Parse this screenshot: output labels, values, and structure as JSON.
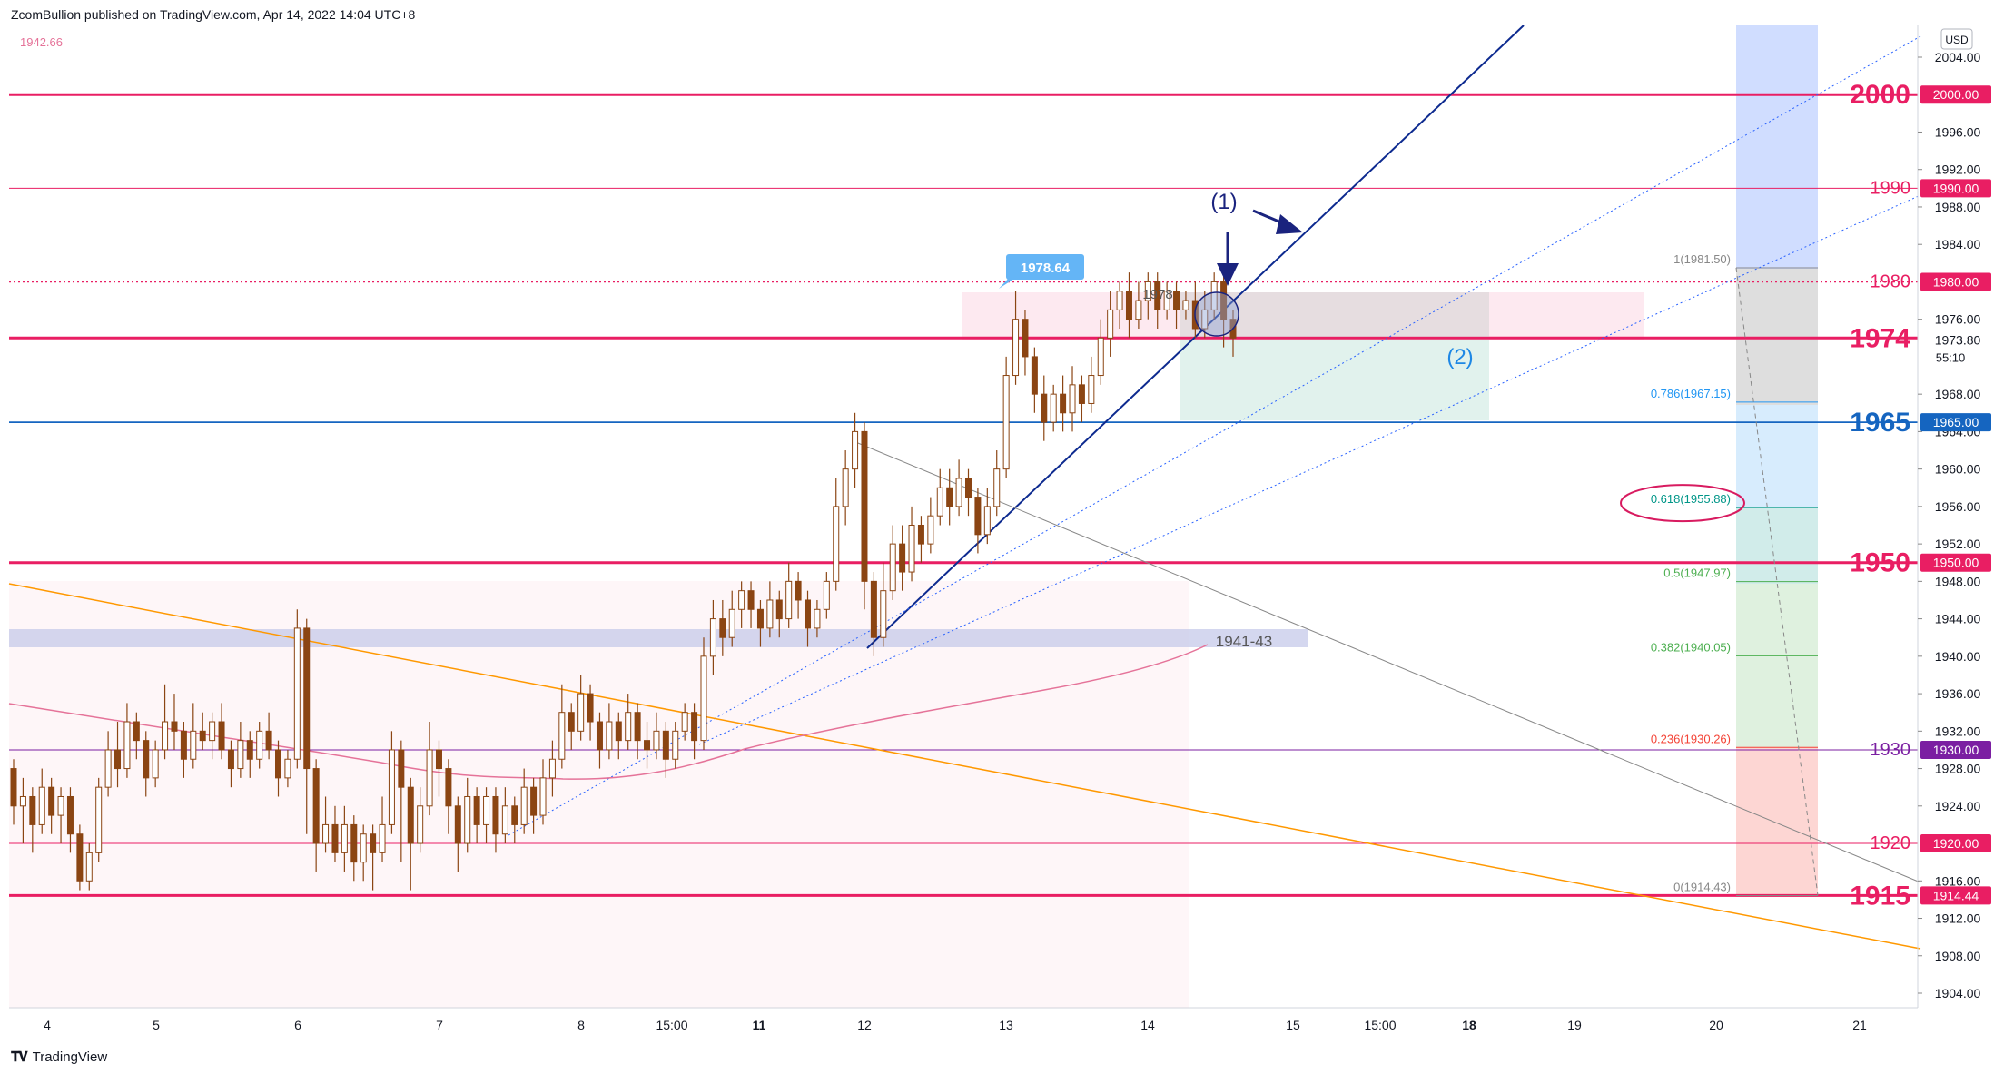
{
  "header": {
    "published": "ZcomBullion published on TradingView.com, Apr 14, 2022 14:04 UTC+8"
  },
  "footer": {
    "brand": "TradingView",
    "logo": "tradingview-logo-icon"
  },
  "colors": {
    "level_pink": "#e91e63",
    "level_blue": "#1565c0",
    "level_purple": "#7b1fa2",
    "trend_navy": "#0d2a8f",
    "candle": "#8b4513",
    "ma_line": "#e57399",
    "orange_line": "#ff9800",
    "blue_band": "#2962ff"
  },
  "chart_data": {
    "type": "candlestick",
    "currency": "USD",
    "top_left_value": "1942.66",
    "price_axis": {
      "min": 1902,
      "max": 2006,
      "ticks": [
        2004,
        1996,
        1992,
        1988,
        1984,
        1976,
        1968,
        1964,
        1960,
        1956,
        1952,
        1948,
        1944,
        1940,
        1936,
        1932,
        1928,
        1924,
        1916,
        1912,
        1908,
        1904
      ],
      "tick_labels": [
        "2004.00",
        "1996.00",
        "1992.00",
        "1988.00",
        "1984.00",
        "1976.00",
        "1968.00",
        "1964.00",
        "1960.00",
        "1956.00",
        "1952.00",
        "1948.00",
        "1944.00",
        "1940.00",
        "1936.00",
        "1932.00",
        "1928.00",
        "1924.00",
        "1916.00",
        "1912.00",
        "1908.00",
        "1904.00"
      ]
    },
    "time_axis": [
      "4",
      "5",
      "6",
      "7",
      "8",
      "15:00",
      "11",
      "12",
      "13",
      "14",
      "15",
      "15:00",
      "18",
      "19",
      "20",
      "21"
    ],
    "bold_time_labels": [
      "11",
      "18"
    ],
    "current_price": {
      "price": 1973.8,
      "label": "1973.80",
      "countdown": "55:10"
    },
    "horizontal_levels": [
      {
        "price": 2000,
        "label": "2000",
        "box": "2000.00",
        "color": "#e91e63",
        "weight": "bold"
      },
      {
        "price": 1990,
        "label": "1990",
        "box": "1990.00",
        "color": "#e91e63",
        "weight": "thin"
      },
      {
        "price": 1980,
        "label": "1980",
        "box": "1980.00",
        "color": "#e91e63",
        "weight": "dotted"
      },
      {
        "price": 1974,
        "label": "1974",
        "box": "",
        "color": "#e91e63",
        "weight": "bold"
      },
      {
        "price": 1965,
        "label": "1965",
        "box": "1965.00",
        "color": "#1565c0",
        "weight": "medium"
      },
      {
        "price": 1950,
        "label": "1950",
        "box": "1950.00",
        "color": "#e91e63",
        "weight": "bold"
      },
      {
        "price": 1930,
        "label": "1930",
        "box": "1930.00",
        "color": "#7b1fa2",
        "weight": "thin"
      },
      {
        "price": 1920,
        "label": "1920",
        "box": "1920.00",
        "color": "#e91e63",
        "weight": "thin"
      },
      {
        "price": 1914.44,
        "label": "1915",
        "box": "1914.44",
        "color": "#e91e63",
        "weight": "bold"
      }
    ],
    "fibonacci": [
      {
        "label": "1(1981.50)",
        "price": 1981.5,
        "color": "#888888"
      },
      {
        "label": "0.786(1967.15)",
        "price": 1967.15,
        "color": "#2196f3"
      },
      {
        "label": "0.618(1955.88)",
        "price": 1955.88,
        "color": "#009688"
      },
      {
        "label": "0.5(1947.97)",
        "price": 1947.97,
        "color": "#4caf50"
      },
      {
        "label": "0.382(1940.05)",
        "price": 1940.05,
        "color": "#4caf50"
      },
      {
        "label": "0.236(1930.26)",
        "price": 1930.26,
        "color": "#f44336"
      },
      {
        "label": "0(1914.43)",
        "price": 1914.43,
        "color": "#888888"
      }
    ],
    "annotations": {
      "high_label": "1978.64",
      "zone_label": "1941-43",
      "mid_label": "1978",
      "marker_1": "(1)",
      "marker_2": "(2)"
    },
    "candles": [
      [
        1928,
        1924,
        1929,
        1922
      ],
      [
        1924,
        1925,
        1927,
        1920
      ],
      [
        1925,
        1922,
        1926,
        1919
      ],
      [
        1922,
        1926,
        1928,
        1921
      ],
      [
        1926,
        1923,
        1927,
        1921
      ],
      [
        1923,
        1925,
        1926,
        1920
      ],
      [
        1925,
        1921,
        1926,
        1919
      ],
      [
        1921,
        1916,
        1922,
        1915
      ],
      [
        1916,
        1919,
        1920,
        1915
      ],
      [
        1919,
        1926,
        1927,
        1918
      ],
      [
        1926,
        1930,
        1932,
        1925
      ],
      [
        1930,
        1928,
        1933,
        1926
      ],
      [
        1928,
        1933,
        1935,
        1927
      ],
      [
        1933,
        1931,
        1934,
        1929
      ],
      [
        1931,
        1927,
        1932,
        1925
      ],
      [
        1927,
        1930,
        1931,
        1926
      ],
      [
        1930,
        1933,
        1937,
        1929
      ],
      [
        1933,
        1932,
        1936,
        1930
      ],
      [
        1932,
        1929,
        1933,
        1927
      ],
      [
        1929,
        1932,
        1935,
        1928
      ],
      [
        1932,
        1931,
        1934,
        1930
      ],
      [
        1931,
        1933,
        1934,
        1929
      ],
      [
        1933,
        1930,
        1935,
        1929
      ],
      [
        1930,
        1928,
        1931,
        1926
      ],
      [
        1928,
        1931,
        1933,
        1927
      ],
      [
        1931,
        1929,
        1932,
        1927
      ],
      [
        1929,
        1932,
        1933,
        1928
      ],
      [
        1932,
        1930,
        1934,
        1929
      ],
      [
        1930,
        1927,
        1931,
        1925
      ],
      [
        1927,
        1929,
        1930,
        1926
      ],
      [
        1929,
        1943,
        1945,
        1928
      ],
      [
        1943,
        1928,
        1944,
        1921
      ],
      [
        1928,
        1920,
        1929,
        1917
      ],
      [
        1920,
        1922,
        1925,
        1919
      ],
      [
        1922,
        1919,
        1924,
        1918
      ],
      [
        1919,
        1922,
        1924,
        1917
      ],
      [
        1922,
        1918,
        1923,
        1916
      ],
      [
        1918,
        1921,
        1922,
        1916
      ],
      [
        1921,
        1919,
        1922,
        1915
      ],
      [
        1919,
        1922,
        1925,
        1918
      ],
      [
        1922,
        1930,
        1932,
        1921
      ],
      [
        1930,
        1926,
        1931,
        1918
      ],
      [
        1926,
        1920,
        1927,
        1915
      ],
      [
        1920,
        1924,
        1926,
        1919
      ],
      [
        1924,
        1930,
        1933,
        1923
      ],
      [
        1930,
        1928,
        1931,
        1925
      ],
      [
        1928,
        1924,
        1929,
        1921
      ],
      [
        1924,
        1920,
        1925,
        1917
      ],
      [
        1920,
        1925,
        1927,
        1919
      ],
      [
        1925,
        1922,
        1926,
        1920
      ],
      [
        1922,
        1925,
        1926,
        1920
      ],
      [
        1925,
        1921,
        1926,
        1919
      ],
      [
        1921,
        1924,
        1926,
        1920
      ],
      [
        1924,
        1922,
        1925,
        1920
      ],
      [
        1922,
        1926,
        1928,
        1921
      ],
      [
        1926,
        1923,
        1927,
        1921
      ],
      [
        1923,
        1927,
        1929,
        1922
      ],
      [
        1927,
        1929,
        1931,
        1925
      ],
      [
        1929,
        1934,
        1937,
        1928
      ],
      [
        1934,
        1932,
        1935,
        1930
      ],
      [
        1932,
        1936,
        1938,
        1931
      ],
      [
        1936,
        1933,
        1937,
        1931
      ],
      [
        1933,
        1930,
        1934,
        1928
      ],
      [
        1930,
        1933,
        1935,
        1929
      ],
      [
        1933,
        1931,
        1934,
        1929
      ],
      [
        1931,
        1934,
        1936,
        1930
      ],
      [
        1934,
        1931,
        1935,
        1929
      ],
      [
        1931,
        1930,
        1933,
        1928
      ],
      [
        1930,
        1932,
        1934,
        1929
      ],
      [
        1932,
        1929,
        1933,
        1927
      ],
      [
        1929,
        1932,
        1933,
        1928
      ],
      [
        1932,
        1934,
        1935,
        1931
      ],
      [
        1934,
        1931,
        1935,
        1929
      ],
      [
        1931,
        1940,
        1942,
        1930
      ],
      [
        1940,
        1944,
        1946,
        1938
      ],
      [
        1944,
        1942,
        1946,
        1940
      ],
      [
        1942,
        1945,
        1947,
        1941
      ],
      [
        1945,
        1947,
        1948,
        1943
      ],
      [
        1947,
        1945,
        1948,
        1943
      ],
      [
        1945,
        1943,
        1946,
        1941
      ],
      [
        1943,
        1946,
        1948,
        1942
      ],
      [
        1946,
        1944,
        1947,
        1942
      ],
      [
        1944,
        1948,
        1950,
        1943
      ],
      [
        1948,
        1946,
        1949,
        1944
      ],
      [
        1946,
        1943,
        1947,
        1941
      ],
      [
        1943,
        1945,
        1946,
        1942
      ],
      [
        1945,
        1948,
        1949,
        1944
      ],
      [
        1948,
        1956,
        1959,
        1947
      ],
      [
        1956,
        1960,
        1962,
        1954
      ],
      [
        1960,
        1964,
        1966,
        1958
      ],
      [
        1964,
        1948,
        1965,
        1945
      ],
      [
        1948,
        1942,
        1949,
        1940
      ],
      [
        1942,
        1947,
        1950,
        1941
      ],
      [
        1947,
        1952,
        1954,
        1946
      ],
      [
        1952,
        1949,
        1954,
        1947
      ],
      [
        1949,
        1954,
        1956,
        1948
      ],
      [
        1954,
        1952,
        1955,
        1950
      ],
      [
        1952,
        1955,
        1957,
        1951
      ],
      [
        1955,
        1958,
        1960,
        1954
      ],
      [
        1958,
        1956,
        1960,
        1954
      ],
      [
        1956,
        1959,
        1961,
        1955
      ],
      [
        1959,
        1957,
        1960,
        1955
      ],
      [
        1957,
        1953,
        1958,
        1951
      ],
      [
        1953,
        1956,
        1958,
        1952
      ],
      [
        1956,
        1960,
        1962,
        1955
      ],
      [
        1960,
        1970,
        1972,
        1959
      ],
      [
        1970,
        1976,
        1979,
        1969
      ],
      [
        1976,
        1972,
        1977,
        1970
      ],
      [
        1972,
        1968,
        1973,
        1966
      ],
      [
        1968,
        1965,
        1970,
        1963
      ],
      [
        1965,
        1968,
        1969,
        1964
      ],
      [
        1968,
        1966,
        1970,
        1964
      ],
      [
        1966,
        1969,
        1971,
        1964
      ],
      [
        1969,
        1967,
        1970,
        1965
      ],
      [
        1967,
        1970,
        1972,
        1966
      ],
      [
        1970,
        1974,
        1976,
        1969
      ],
      [
        1974,
        1977,
        1979,
        1972
      ],
      [
        1977,
        1979,
        1980,
        1975
      ],
      [
        1979,
        1976,
        1981,
        1974
      ],
      [
        1976,
        1978,
        1980,
        1975
      ],
      [
        1978,
        1980,
        1981,
        1976
      ],
      [
        1980,
        1977,
        1981,
        1975
      ],
      [
        1977,
        1979,
        1980,
        1976
      ],
      [
        1979,
        1977,
        1980,
        1975
      ],
      [
        1977,
        1978,
        1979,
        1976
      ],
      [
        1978,
        1975,
        1980,
        1974
      ],
      [
        1975,
        1977,
        1979,
        1974
      ],
      [
        1977,
        1980,
        1981,
        1976
      ],
      [
        1980,
        1976,
        1981,
        1973
      ],
      [
        1976,
        1974,
        1977,
        1972
      ]
    ]
  }
}
